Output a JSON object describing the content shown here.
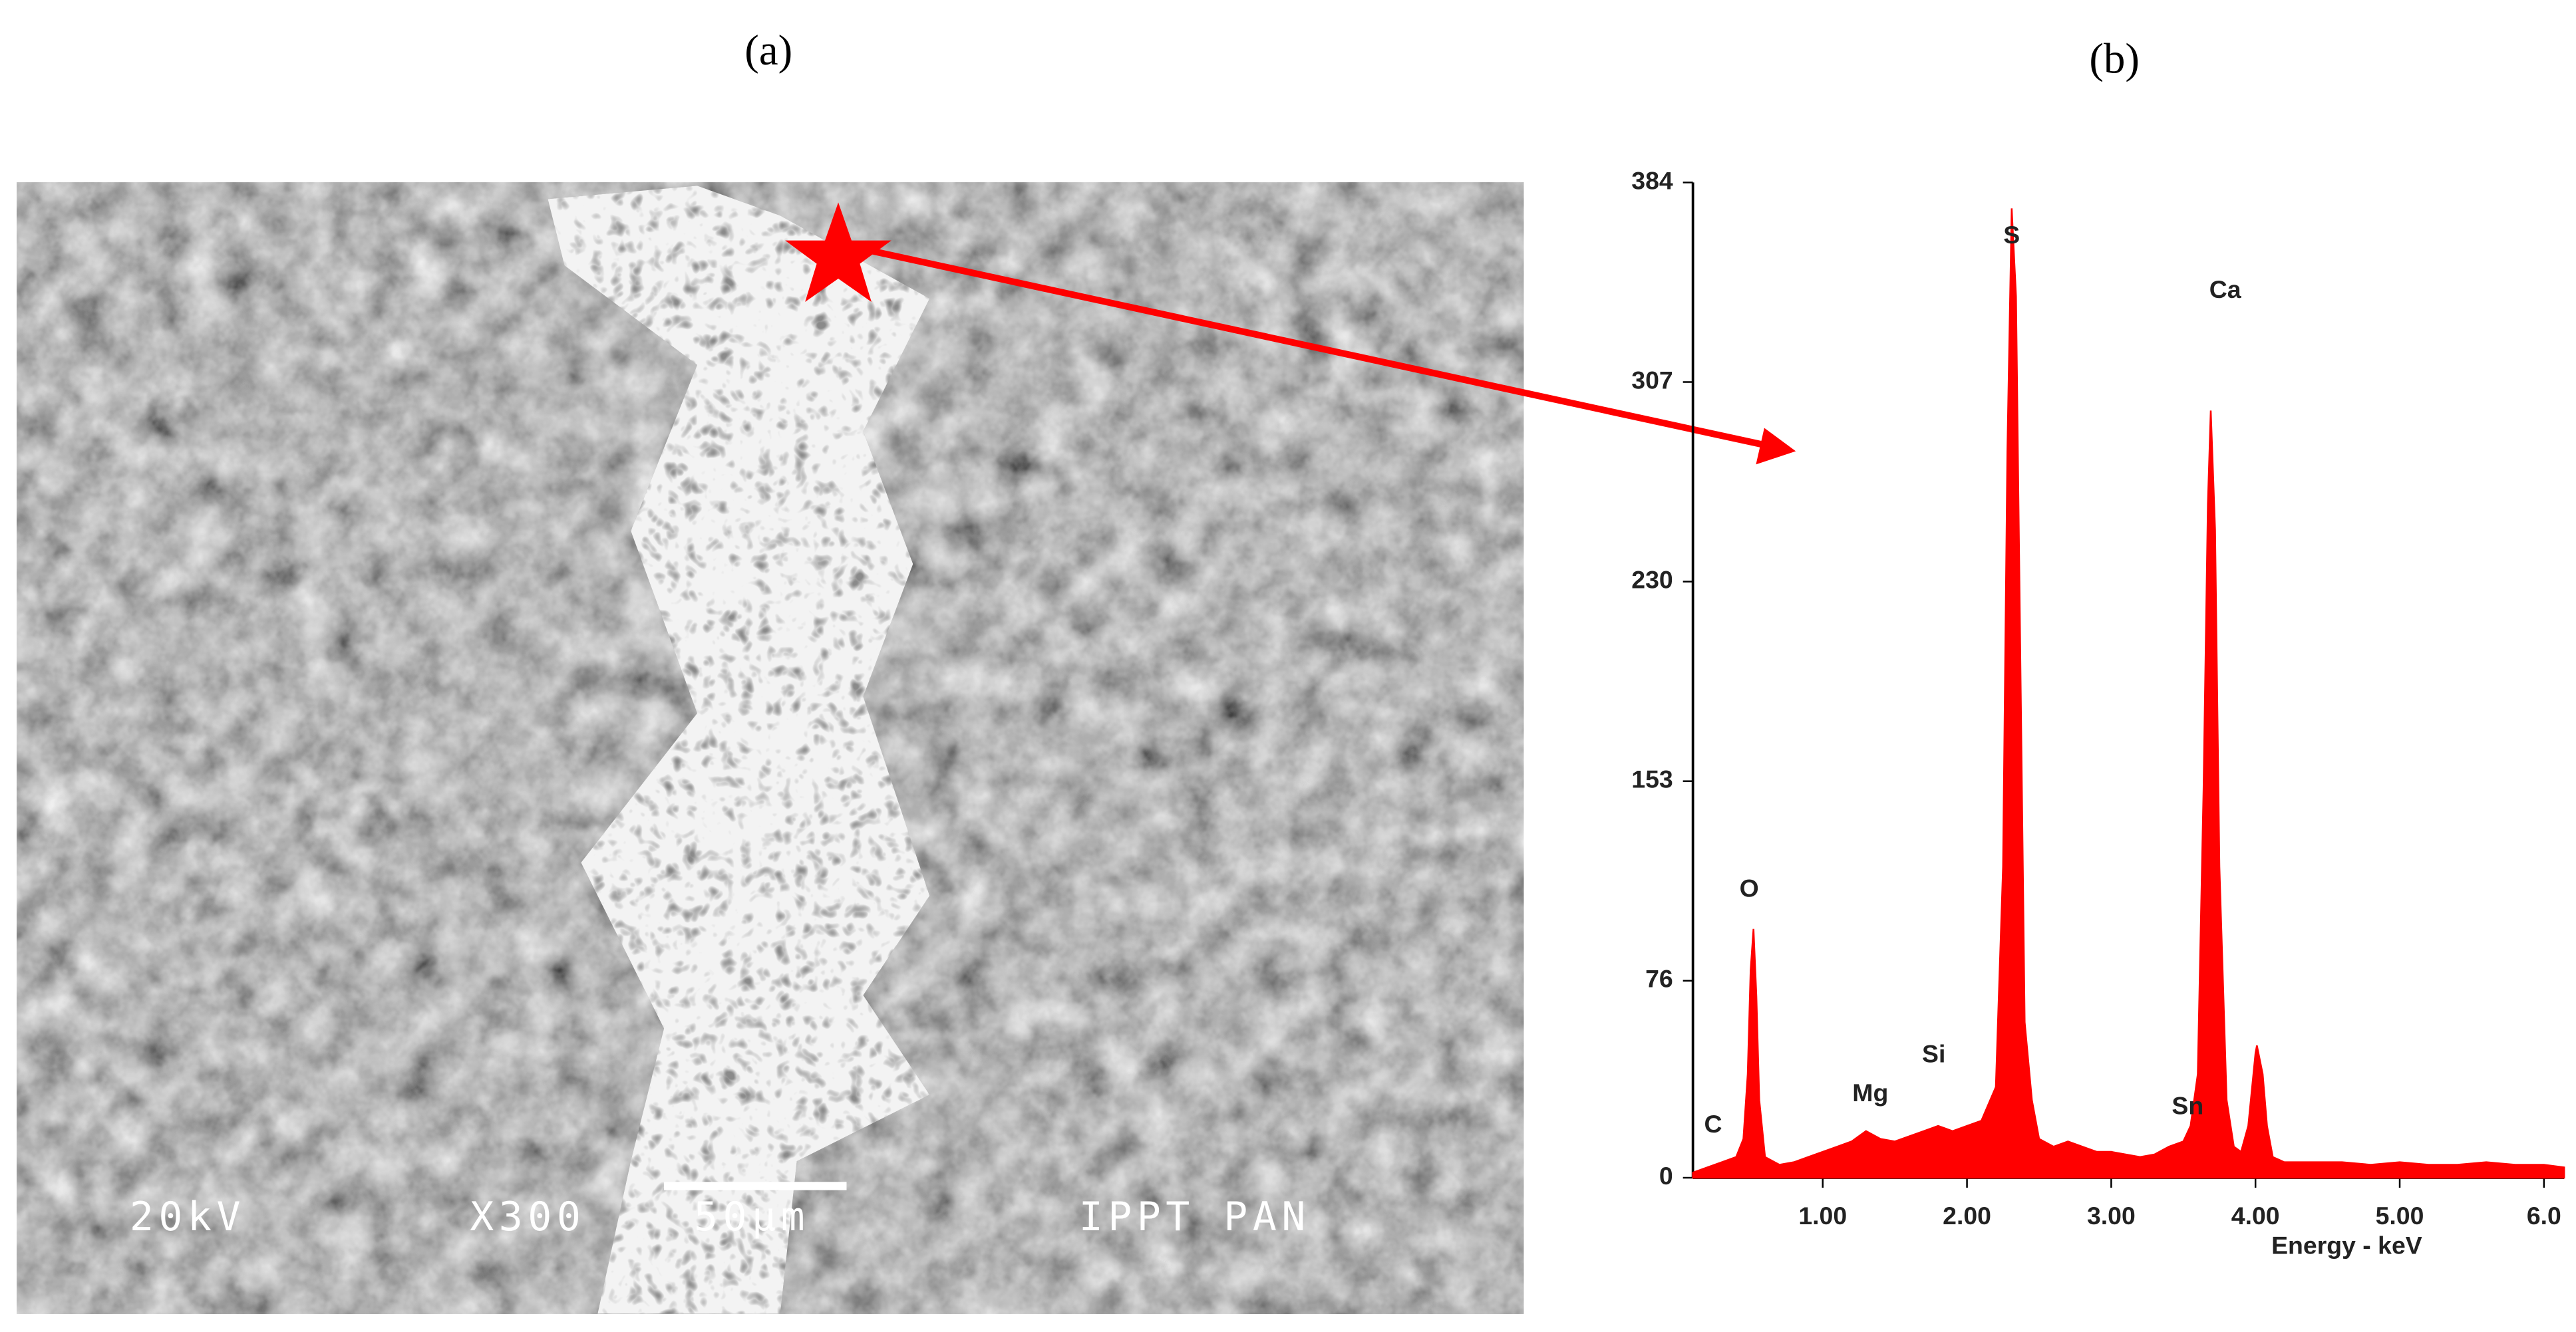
{
  "panel_titles": [
    "(a)",
    "(b)"
  ],
  "image_labels": [
    "20kV",
    "X300",
    "50μm",
    "IPPT PAN"
  ],
  "chart_data": {
    "type": "area",
    "x_label": "Energy - keV",
    "color": "#ff0000",
    "xlim": [
      0.1,
      6.14
    ],
    "ylim": [
      0,
      384
    ],
    "xticks": [
      {
        "value": 1,
        "label": "1.00"
      },
      {
        "value": 2,
        "label": "2.00"
      },
      {
        "value": 3,
        "label": "3.00"
      },
      {
        "value": 4,
        "label": "4.00"
      },
      {
        "value": 5,
        "label": "5.00"
      },
      {
        "value": 6,
        "label": "6.0"
      }
    ],
    "yticks": [
      0,
      76,
      153,
      230,
      307,
      384
    ],
    "x": [
      0.1,
      0.2,
      0.3,
      0.4,
      0.45,
      0.48,
      0.5,
      0.52,
      0.54,
      0.56,
      0.6,
      0.7,
      0.8,
      0.9,
      1.0,
      1.1,
      1.2,
      1.3,
      1.4,
      1.5,
      1.6,
      1.7,
      1.8,
      1.9,
      2.0,
      2.1,
      2.2,
      2.25,
      2.28,
      2.31,
      2.34,
      2.37,
      2.4,
      2.45,
      2.5,
      2.6,
      2.7,
      2.8,
      2.9,
      3.0,
      3.1,
      3.2,
      3.3,
      3.4,
      3.5,
      3.55,
      3.6,
      3.64,
      3.67,
      3.69,
      3.72,
      3.75,
      3.8,
      3.85,
      3.9,
      3.95,
      4.0,
      4.01,
      4.05,
      4.08,
      4.12,
      4.2,
      4.4,
      4.6,
      4.8,
      5.0,
      5.2,
      5.4,
      5.6,
      5.8,
      6.0,
      6.14
    ],
    "values": [
      2,
      4,
      6,
      8,
      15,
      40,
      80,
      96,
      70,
      30,
      8,
      5,
      6,
      8,
      10,
      12,
      14,
      18,
      15,
      14,
      16,
      18,
      20,
      18,
      20,
      22,
      35,
      120,
      280,
      374,
      340,
      200,
      60,
      30,
      15,
      12,
      14,
      12,
      10,
      10,
      9,
      8,
      9,
      12,
      14,
      20,
      40,
      150,
      260,
      296,
      250,
      120,
      30,
      12,
      10,
      20,
      48,
      51,
      40,
      20,
      8,
      6,
      6,
      6,
      5,
      6,
      5,
      5,
      6,
      5,
      5,
      4
    ],
    "annotations": [
      {
        "text": "C",
        "x": 0.24,
        "y": 20
      },
      {
        "text": "O",
        "x": 0.49,
        "y": 111
      },
      {
        "text": "Mg",
        "x": 1.33,
        "y": 32
      },
      {
        "text": "Si",
        "x": 1.77,
        "y": 47
      },
      {
        "text": "S",
        "x": 2.31,
        "y": 363
      },
      {
        "text": "Ca",
        "x": 3.79,
        "y": 342
      },
      {
        "text": "Sn",
        "x": 3.53,
        "y": 27
      }
    ]
  }
}
